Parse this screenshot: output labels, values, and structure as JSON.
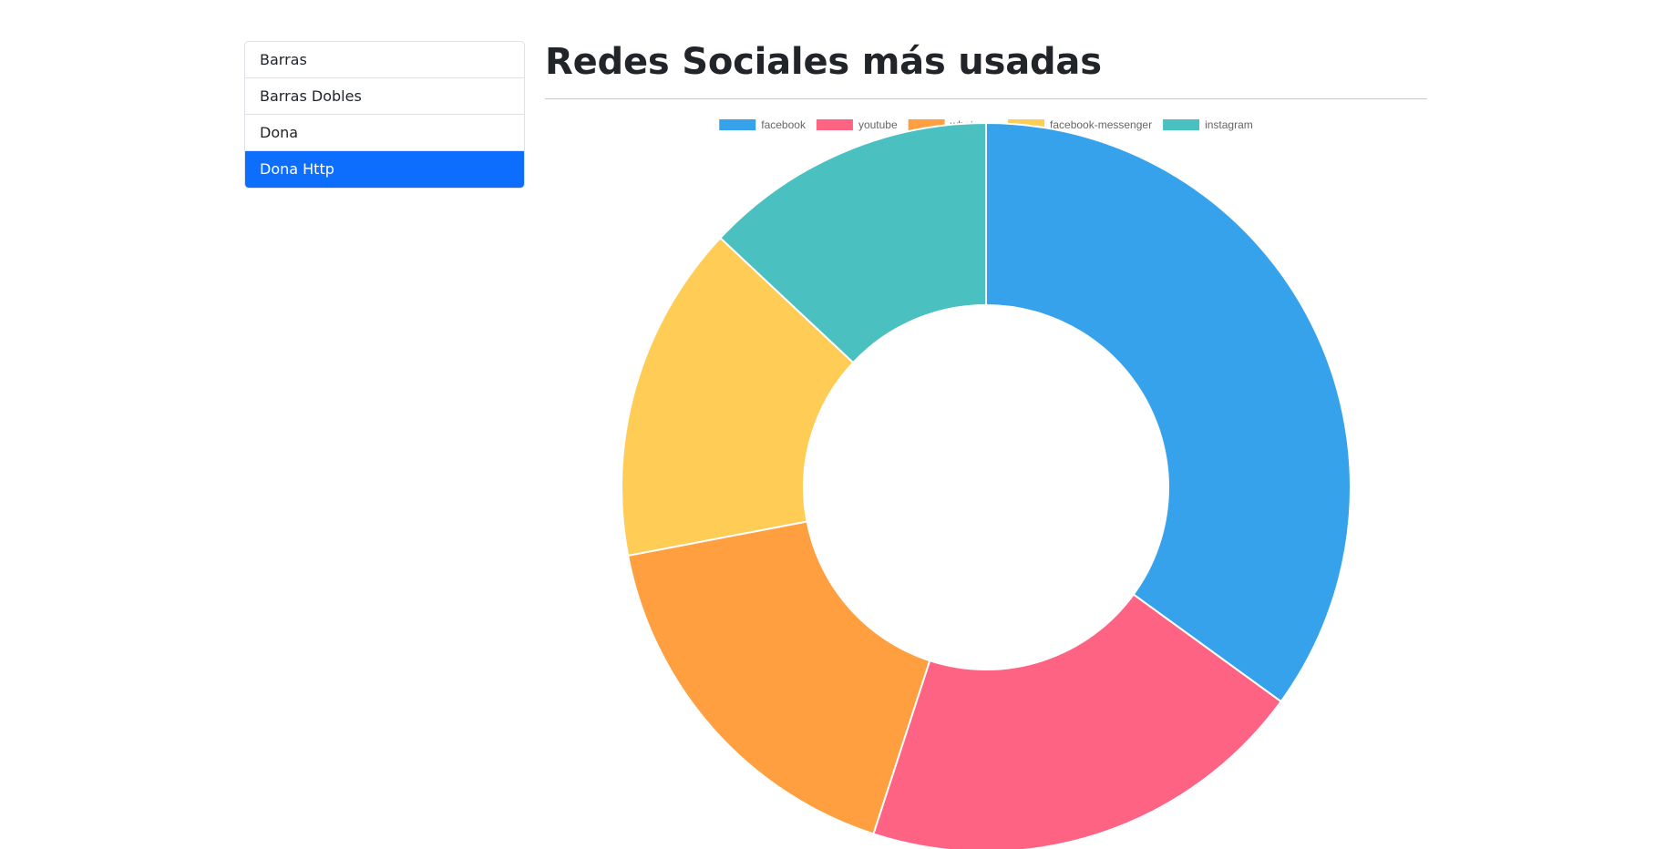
{
  "sidebar": {
    "items": [
      {
        "label": "Barras",
        "active": false
      },
      {
        "label": "Barras Dobles",
        "active": false
      },
      {
        "label": "Dona",
        "active": false
      },
      {
        "label": "Dona Http",
        "active": true
      }
    ]
  },
  "page": {
    "title": "Redes Sociales más usadas"
  },
  "chart_data": {
    "type": "pie",
    "donut": true,
    "legend_position": "top",
    "categories": [
      "facebook",
      "youtube",
      "whatsapp",
      "facebook-messenger",
      "instagram"
    ],
    "values": [
      35,
      20,
      17,
      15,
      13
    ],
    "colors": [
      "#36a2eb",
      "#ff6384",
      "#ff9f40",
      "#ffcd56",
      "#4bc0c0"
    ]
  }
}
